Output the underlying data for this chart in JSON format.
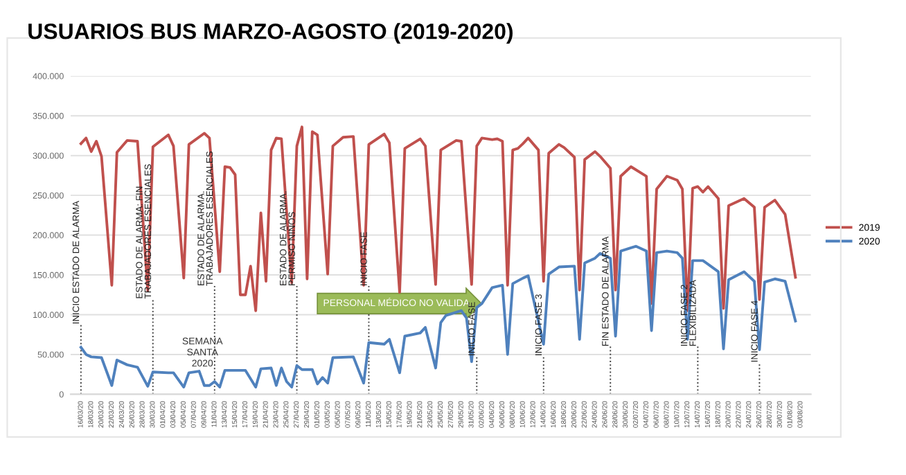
{
  "chart_data": {
    "type": "line",
    "title": "USUARIOS BUS MARZO-AGOSTO (2019-2020)",
    "series": [
      {
        "name": "2019",
        "color": "#c0504d",
        "x": [
          "2020-03-16",
          "2020-03-17",
          "2020-03-18",
          "2020-03-19",
          "2020-03-20",
          "2020-03-22",
          "2020-03-23",
          "2020-03-25",
          "2020-03-27",
          "2020-03-29",
          "2020-03-30",
          "2020-04-02",
          "2020-04-03",
          "2020-04-05",
          "2020-04-06",
          "2020-04-09",
          "2020-04-10",
          "2020-04-12",
          "2020-04-13",
          "2020-04-14",
          "2020-04-15",
          "2020-04-16",
          "2020-04-17",
          "2020-04-18",
          "2020-04-19",
          "2020-04-20",
          "2020-04-21",
          "2020-04-22",
          "2020-04-23",
          "2020-04-24",
          "2020-04-26",
          "2020-04-27",
          "2020-04-28",
          "2020-04-29",
          "2020-04-30",
          "2020-05-01",
          "2020-05-03",
          "2020-05-04",
          "2020-05-06",
          "2020-05-08",
          "2020-05-10",
          "2020-05-11",
          "2020-05-14",
          "2020-05-15",
          "2020-05-17",
          "2020-05-18",
          "2020-05-21",
          "2020-05-22",
          "2020-05-24",
          "2020-05-25",
          "2020-05-28",
          "2020-05-29",
          "2020-05-31",
          "2020-06-01",
          "2020-06-02",
          "2020-06-04",
          "2020-06-05",
          "2020-06-06",
          "2020-06-07",
          "2020-06-08",
          "2020-06-09",
          "2020-06-10",
          "2020-06-11",
          "2020-06-13",
          "2020-06-14",
          "2020-06-15",
          "2020-06-17",
          "2020-06-18",
          "2020-06-20",
          "2020-06-21",
          "2020-06-22",
          "2020-06-24",
          "2020-06-25",
          "2020-06-27",
          "2020-06-28",
          "2020-06-29",
          "2020-07-01",
          "2020-07-04",
          "2020-07-05",
          "2020-07-06",
          "2020-07-08",
          "2020-07-10",
          "2020-07-11",
          "2020-07-12",
          "2020-07-13",
          "2020-07-14",
          "2020-07-15",
          "2020-07-16",
          "2020-07-18",
          "2020-07-19",
          "2020-07-20",
          "2020-07-23",
          "2020-07-25",
          "2020-07-26",
          "2020-07-27",
          "2020-07-29",
          "2020-07-31",
          "2020-08-02"
        ],
        "values": [
          315000,
          322000,
          305000,
          318000,
          299000,
          137000,
          304000,
          319000,
          318000,
          130000,
          311000,
          326000,
          312000,
          146000,
          314000,
          328000,
          322000,
          154000,
          286000,
          285000,
          276000,
          125000,
          125000,
          161000,
          105000,
          228000,
          142000,
          307000,
          322000,
          321000,
          140000,
          312000,
          336000,
          145000,
          330000,
          326000,
          151000,
          312000,
          323000,
          324000,
          137000,
          314000,
          327000,
          316000,
          128000,
          309000,
          321000,
          312000,
          138000,
          307000,
          319000,
          318000,
          138000,
          312000,
          322000,
          320000,
          321000,
          318000,
          137000,
          307000,
          309000,
          315000,
          322000,
          307000,
          142000,
          303000,
          314000,
          310000,
          298000,
          131000,
          295000,
          305000,
          299000,
          284000,
          131000,
          274000,
          286000,
          274000,
          114000,
          258000,
          274000,
          269000,
          258000,
          105000,
          259000,
          261000,
          254000,
          261000,
          246000,
          108000,
          237000,
          246000,
          235000,
          119000,
          235000,
          244000,
          226000,
          147000
        ]
      },
      {
        "name": "2020",
        "color": "#4f81bd",
        "x": [
          "2020-03-16",
          "2020-03-17",
          "2020-03-18",
          "2020-03-20",
          "2020-03-22",
          "2020-03-23",
          "2020-03-25",
          "2020-03-27",
          "2020-03-29",
          "2020-03-30",
          "2020-04-02",
          "2020-04-03",
          "2020-04-05",
          "2020-04-06",
          "2020-04-08",
          "2020-04-09",
          "2020-04-10",
          "2020-04-11",
          "2020-04-12",
          "2020-04-13",
          "2020-04-17",
          "2020-04-19",
          "2020-04-20",
          "2020-04-22",
          "2020-04-23",
          "2020-04-24",
          "2020-04-25",
          "2020-04-26",
          "2020-04-27",
          "2020-04-28",
          "2020-04-30",
          "2020-05-01",
          "2020-05-02",
          "2020-05-03",
          "2020-05-04",
          "2020-05-08",
          "2020-05-10",
          "2020-05-11",
          "2020-05-14",
          "2020-05-15",
          "2020-05-17",
          "2020-05-18",
          "2020-05-21",
          "2020-05-22",
          "2020-05-24",
          "2020-05-25",
          "2020-05-26",
          "2020-05-29",
          "2020-05-30",
          "2020-05-31",
          "2020-06-01",
          "2020-06-02",
          "2020-06-04",
          "2020-06-06",
          "2020-06-07",
          "2020-06-08",
          "2020-06-10",
          "2020-06-11",
          "2020-06-14",
          "2020-06-15",
          "2020-06-17",
          "2020-06-20",
          "2020-06-21",
          "2020-06-22",
          "2020-06-24",
          "2020-06-25",
          "2020-06-27",
          "2020-06-28",
          "2020-06-29",
          "2020-07-01",
          "2020-07-02",
          "2020-07-04",
          "2020-07-05",
          "2020-07-06",
          "2020-07-08",
          "2020-07-10",
          "2020-07-11",
          "2020-07-12",
          "2020-07-13",
          "2020-07-15",
          "2020-07-18",
          "2020-07-19",
          "2020-07-20",
          "2020-07-23",
          "2020-07-25",
          "2020-07-26",
          "2020-07-27",
          "2020-07-29",
          "2020-07-31",
          "2020-08-02"
        ],
        "values": [
          59000,
          50000,
          47000,
          46000,
          11000,
          43000,
          37000,
          34000,
          10000,
          28000,
          27000,
          27000,
          9000,
          27000,
          29000,
          11000,
          11000,
          16000,
          9000,
          30000,
          30000,
          9000,
          32000,
          33000,
          11000,
          33000,
          16000,
          9000,
          36000,
          31000,
          31000,
          13000,
          21000,
          14000,
          46000,
          47000,
          14000,
          65000,
          63000,
          69000,
          27000,
          73000,
          77000,
          84000,
          33000,
          90000,
          99000,
          105000,
          96000,
          41000,
          109000,
          114000,
          134000,
          137000,
          50000,
          139000,
          146000,
          149000,
          63000,
          151000,
          160000,
          161000,
          69000,
          165000,
          171000,
          177000,
          171000,
          73000,
          180000,
          184000,
          186000,
          180000,
          80000,
          178000,
          180000,
          178000,
          171000,
          69000,
          168000,
          168000,
          154000,
          57000,
          144000,
          154000,
          142000,
          56000,
          141000,
          145000,
          142000,
          92000
        ]
      }
    ],
    "xlim": [
      "2020-03-14",
      "2020-08-05"
    ],
    "xticks": [
      {
        "value": "2020-03-16",
        "label": "16/03/20"
      },
      {
        "value": "2020-03-18",
        "label": "18/03/20"
      },
      {
        "value": "2020-03-20",
        "label": "20/03/20"
      },
      {
        "value": "2020-03-22",
        "label": "22/03/20"
      },
      {
        "value": "2020-03-24",
        "label": "24/03/20"
      },
      {
        "value": "2020-03-26",
        "label": "26/03/20"
      },
      {
        "value": "2020-03-28",
        "label": "28/03/20"
      },
      {
        "value": "2020-03-30",
        "label": "30/03/20"
      },
      {
        "value": "2020-04-01",
        "label": "01/04/20"
      },
      {
        "value": "2020-04-03",
        "label": "03/04/20"
      },
      {
        "value": "2020-04-05",
        "label": "05/04/20"
      },
      {
        "value": "2020-04-07",
        "label": "07/04/20"
      },
      {
        "value": "2020-04-09",
        "label": "09/04/20"
      },
      {
        "value": "2020-04-11",
        "label": "11/04/20"
      },
      {
        "value": "2020-04-13",
        "label": "13/04/20"
      },
      {
        "value": "2020-04-15",
        "label": "15/04/20"
      },
      {
        "value": "2020-04-17",
        "label": "17/04/20"
      },
      {
        "value": "2020-04-19",
        "label": "19/04/20"
      },
      {
        "value": "2020-04-21",
        "label": "21/04/20"
      },
      {
        "value": "2020-04-23",
        "label": "23/04/20"
      },
      {
        "value": "2020-04-25",
        "label": "25/04/20"
      },
      {
        "value": "2020-04-27",
        "label": "27/04/20"
      },
      {
        "value": "2020-04-29",
        "label": "29/04/20"
      },
      {
        "value": "2020-05-01",
        "label": "01/05/20"
      },
      {
        "value": "2020-05-03",
        "label": "03/05/20"
      },
      {
        "value": "2020-05-05",
        "label": "05/05/20"
      },
      {
        "value": "2020-05-07",
        "label": "07/05/20"
      },
      {
        "value": "2020-05-09",
        "label": "09/05/20"
      },
      {
        "value": "2020-05-11",
        "label": "11/05/20"
      },
      {
        "value": "2020-05-13",
        "label": "13/05/20"
      },
      {
        "value": "2020-05-15",
        "label": "15/05/20"
      },
      {
        "value": "2020-05-17",
        "label": "17/05/20"
      },
      {
        "value": "2020-05-19",
        "label": "19/05/20"
      },
      {
        "value": "2020-05-21",
        "label": "21/05/20"
      },
      {
        "value": "2020-05-23",
        "label": "23/05/20"
      },
      {
        "value": "2020-05-25",
        "label": "25/05/20"
      },
      {
        "value": "2020-05-27",
        "label": "27/05/20"
      },
      {
        "value": "2020-05-29",
        "label": "29/05/20"
      },
      {
        "value": "2020-05-31",
        "label": "31/05/20"
      },
      {
        "value": "2020-06-02",
        "label": "02/06/20"
      },
      {
        "value": "2020-06-04",
        "label": "04/06/20"
      },
      {
        "value": "2020-06-06",
        "label": "06/06/20"
      },
      {
        "value": "2020-06-08",
        "label": "08/06/20"
      },
      {
        "value": "2020-06-10",
        "label": "10/06/20"
      },
      {
        "value": "2020-06-12",
        "label": "12/06/20"
      },
      {
        "value": "2020-06-14",
        "label": "14/06/20"
      },
      {
        "value": "2020-06-16",
        "label": "16/06/20"
      },
      {
        "value": "2020-06-18",
        "label": "18/06/20"
      },
      {
        "value": "2020-06-20",
        "label": "20/06/20"
      },
      {
        "value": "2020-06-22",
        "label": "22/06/20"
      },
      {
        "value": "2020-06-24",
        "label": "24/06/20"
      },
      {
        "value": "2020-06-26",
        "label": "26/06/20"
      },
      {
        "value": "2020-06-28",
        "label": "28/06/20"
      },
      {
        "value": "2020-06-30",
        "label": "30/06/20"
      },
      {
        "value": "2020-07-02",
        "label": "02/07/20"
      },
      {
        "value": "2020-07-04",
        "label": "04/07/20"
      },
      {
        "value": "2020-07-06",
        "label": "06/07/20"
      },
      {
        "value": "2020-07-08",
        "label": "08/07/20"
      },
      {
        "value": "2020-07-10",
        "label": "10/07/20"
      },
      {
        "value": "2020-07-12",
        "label": "12/07/20"
      },
      {
        "value": "2020-07-14",
        "label": "14/07/20"
      },
      {
        "value": "2020-07-16",
        "label": "16/07/20"
      },
      {
        "value": "2020-07-18",
        "label": "18/07/20"
      },
      {
        "value": "2020-07-20",
        "label": "20/07/20"
      },
      {
        "value": "2020-07-22",
        "label": "22/07/20"
      },
      {
        "value": "2020-07-24",
        "label": "24/07/20"
      },
      {
        "value": "2020-07-26",
        "label": "26/07/20"
      },
      {
        "value": "2020-07-28",
        "label": "28/07/20"
      },
      {
        "value": "2020-07-30",
        "label": "30/07/20"
      },
      {
        "value": "2020-08-01",
        "label": "01/08/20"
      },
      {
        "value": "2020-08-03",
        "label": "03/08/20"
      }
    ],
    "ylim": [
      0,
      400000
    ],
    "yticks": [
      {
        "value": 0,
        "label": "0"
      },
      {
        "value": 50000,
        "label": "50.000"
      },
      {
        "value": 100000,
        "label": "100.000"
      },
      {
        "value": 150000,
        "label": "150.000"
      },
      {
        "value": 200000,
        "label": "200.000"
      },
      {
        "value": 250000,
        "label": "250.000"
      },
      {
        "value": 300000,
        "label": "300.000"
      },
      {
        "value": 350000,
        "label": "350.000"
      },
      {
        "value": 400000,
        "label": "400.000"
      }
    ],
    "grid": "y",
    "legend": "right",
    "marker": "none",
    "line_style": "solid",
    "ref_lines": [
      {
        "axis": "x",
        "value": "2020-03-16",
        "label": "INICIO ESTADO DE ALARMA",
        "line_style": "dotted",
        "color": "#404040"
      },
      {
        "axis": "x",
        "value": "2020-03-30",
        "label": "ESTADO DE ALARMA: FIN TRABAJADORES ESENCIALES",
        "line_style": "dotted",
        "color": "#404040"
      },
      {
        "axis": "x",
        "value": "2020-04-11",
        "label": "ESTADO DE ALARMA. TRABAJADORES ESENCIALES",
        "line_style": "dotted",
        "color": "#404040"
      },
      {
        "axis": "x",
        "value": "2020-04-27",
        "label": "ESTADO DE ALARMA. PERMISO NIÑOS",
        "line_style": "dotted",
        "color": "#404040"
      },
      {
        "axis": "x",
        "value": "2020-05-11",
        "label": "INICIO FASE",
        "line_style": "dotted",
        "color": "#404040"
      },
      {
        "axis": "x",
        "value": "2020-06-01",
        "label": "INICIO FASE",
        "line_style": "dotted",
        "color": "#404040"
      },
      {
        "axis": "x",
        "value": "2020-06-14",
        "label": "INICIO FASE 3",
        "line_style": "dotted",
        "color": "#404040"
      },
      {
        "axis": "x",
        "value": "2020-06-27",
        "label": "FIN ESTADO DE ALARMA",
        "line_style": "dotted",
        "color": "#404040"
      },
      {
        "axis": "x",
        "value": "2020-07-14",
        "label": "INICIO FASE 2 FLEXIBILIZADA",
        "line_style": "dotted",
        "color": "#404040"
      },
      {
        "axis": "x",
        "value": "2020-07-26",
        "label": "INICIO FASE 4",
        "line_style": "dotted",
        "color": "#404040"
      }
    ],
    "annotations": [
      "SEMANA SANTA 2020",
      "PERSONAL MÉDICO NO VALIDA"
    ]
  }
}
